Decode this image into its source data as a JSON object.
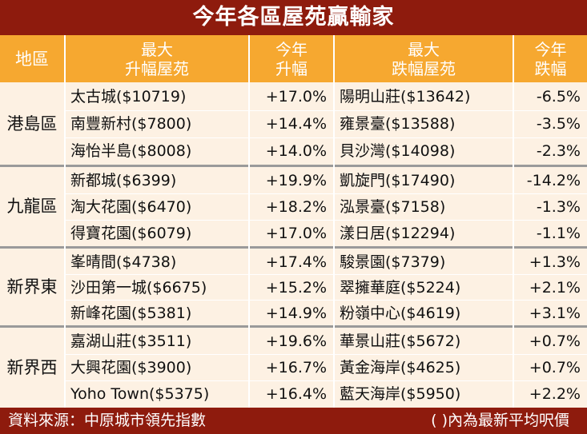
{
  "title": "今年各區屋苑贏輸家",
  "headers": {
    "region": "地區",
    "top_gain_line1": "最大",
    "top_gain_line2": "升幅屋苑",
    "gain_line1": "今年",
    "gain_line2": "升幅",
    "top_loss_line1": "最大",
    "top_loss_line2": "跌幅屋苑",
    "loss_line1": "今年",
    "loss_line2": "跌幅"
  },
  "regions": [
    {
      "name": "港島區",
      "rows": [
        {
          "gain_estate": "太古城($10719)",
          "gain": "+17.0%",
          "loss_estate": "陽明山莊($13642)",
          "loss": "-6.5%"
        },
        {
          "gain_estate": "南豐新村($7800)",
          "gain": "+14.4%",
          "loss_estate": "雍景臺($13588)",
          "loss": "-3.5%"
        },
        {
          "gain_estate": "海怡半島($8008)",
          "gain": "+14.0%",
          "loss_estate": "貝沙灣($14098)",
          "loss": "-2.3%"
        }
      ]
    },
    {
      "name": "九龍區",
      "rows": [
        {
          "gain_estate": "新都城($6399)",
          "gain": "+19.9%",
          "loss_estate": "凱旋門($17490)",
          "loss": "-14.2%"
        },
        {
          "gain_estate": "淘大花園($6470)",
          "gain": "+18.2%",
          "loss_estate": "泓景臺($7158)",
          "loss": "-1.3%"
        },
        {
          "gain_estate": "得寶花園($6079)",
          "gain": "+17.0%",
          "loss_estate": "漾日居($12294)",
          "loss": "-1.1%"
        }
      ]
    },
    {
      "name": "新界東",
      "rows": [
        {
          "gain_estate": "峯晴間($4738)",
          "gain": "+17.4%",
          "loss_estate": "駿景園($7379)",
          "loss": "+1.3%"
        },
        {
          "gain_estate": "沙田第一城($6675)",
          "gain": "+15.2%",
          "loss_estate": "翠擁華庭($5224)",
          "loss": "+2.1%"
        },
        {
          "gain_estate": "新峰花園($5381)",
          "gain": "+14.9%",
          "loss_estate": "粉嶺中心($4619)",
          "loss": "+3.1%"
        }
      ]
    },
    {
      "name": "新界西",
      "rows": [
        {
          "gain_estate": "嘉湖山莊($3511)",
          "gain": "+19.6%",
          "loss_estate": "華景山莊($5672)",
          "loss": "+0.7%"
        },
        {
          "gain_estate": "大興花園($3900)",
          "gain": "+16.7%",
          "loss_estate": "黃金海岸($4625)",
          "loss": "+0.7%"
        },
        {
          "gain_estate": "Yoho Town($5375)",
          "gain": "+16.4%",
          "loss_estate": "藍天海岸($5950)",
          "loss": "+2.2%"
        }
      ]
    }
  ],
  "footer": {
    "source": "資料來源：中原城市領先指數",
    "note": "( )內為最新平均呎價"
  },
  "colors": {
    "title_bg": "#8e1b0d",
    "header_bg": "#f6a830",
    "body_bg": "#fdf1e3"
  }
}
